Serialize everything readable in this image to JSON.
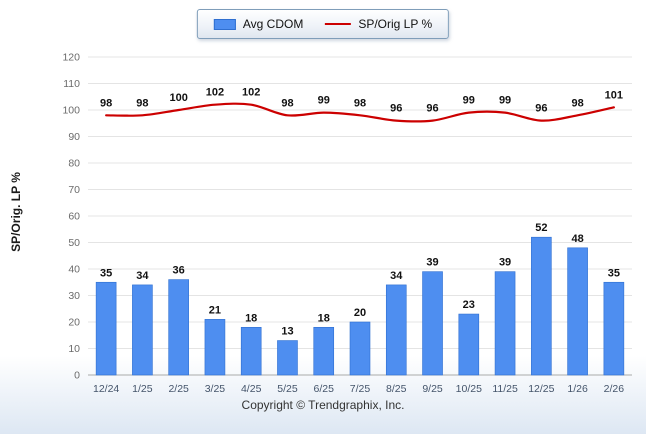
{
  "legend": {
    "items": [
      {
        "label": "Avg CDOM",
        "type": "bar",
        "color": "#4e8ef0"
      },
      {
        "label": "SP/Orig LP %",
        "type": "line",
        "color": "#cc0000"
      }
    ]
  },
  "footer": {
    "copyright": "Copyright © Trendgraphix, Inc."
  },
  "chart_data": {
    "type": "bar+line",
    "categories": [
      "12/24",
      "1/25",
      "2/25",
      "3/25",
      "4/25",
      "5/25",
      "6/25",
      "7/25",
      "8/25",
      "9/25",
      "10/25",
      "11/25",
      "12/25",
      "1/26",
      "2/26"
    ],
    "series": [
      {
        "name": "Avg CDOM",
        "type": "bar",
        "color": "#4e8ef0",
        "border_color": "#2f6fd0",
        "values": [
          35,
          34,
          36,
          21,
          18,
          13,
          18,
          20,
          34,
          39,
          23,
          39,
          52,
          48,
          35
        ]
      },
      {
        "name": "SP/Orig LP %",
        "type": "line",
        "color": "#cc0000",
        "values": [
          98,
          98,
          100,
          102,
          102,
          98,
          99,
          98,
          96,
          96,
          99,
          99,
          96,
          98,
          101
        ]
      }
    ],
    "title": "",
    "xlabel": "",
    "ylabel": "SP/Orig. LP %",
    "ylim": [
      0,
      120
    ],
    "ytick_step": 10,
    "grid": true,
    "legend_position": "top-center"
  }
}
